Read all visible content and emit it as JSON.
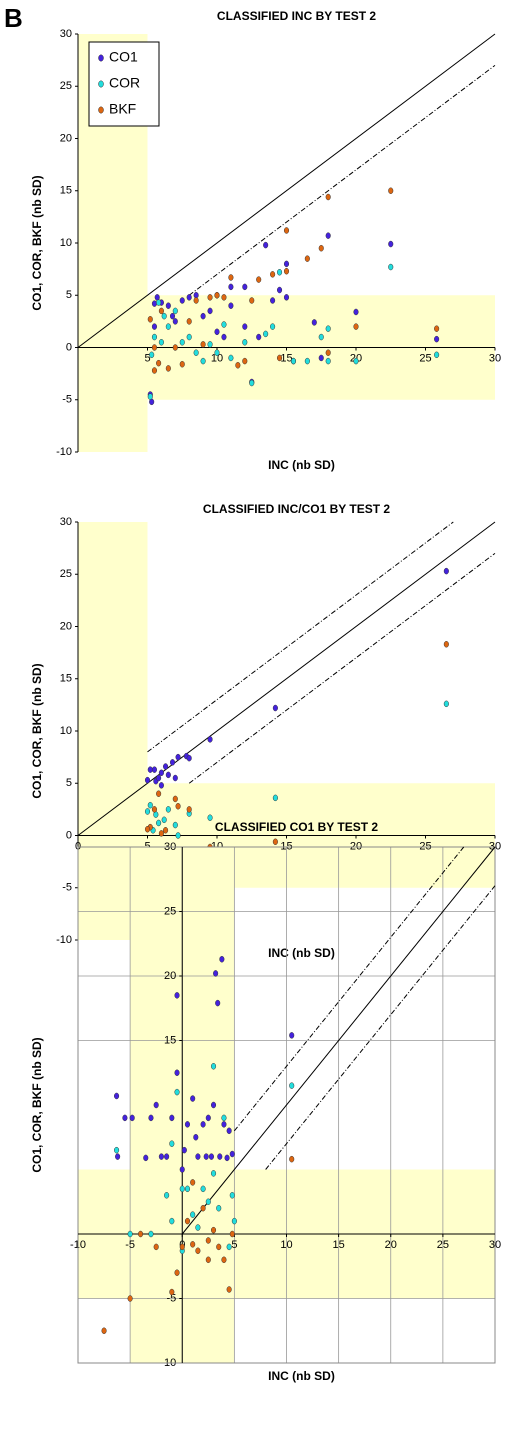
{
  "panel_label": "B",
  "chart_data": [
    {
      "type": "scatter",
      "title": "CLASSIFIED INC BY TEST 2",
      "x_label": "INC (nb SD)",
      "y_label": "CO1, COR, BKF (nb SD)",
      "xlim": [
        0,
        30
      ],
      "ylim": [
        -10,
        30
      ],
      "xticks": [
        5,
        10,
        15,
        20,
        25,
        30
      ],
      "yticks": [
        -10,
        -5,
        0,
        5,
        10,
        15,
        20,
        25,
        30
      ],
      "grid": false,
      "legend": "upper left",
      "shaded_x": [
        0,
        5
      ],
      "shaded_y": [
        -5,
        5
      ],
      "lines": [
        {
          "slope": 1,
          "intercept": 0,
          "x_start": 0,
          "style": "solid"
        },
        {
          "slope": 1,
          "intercept": -3,
          "x_start": 8,
          "style": "dashed"
        }
      ],
      "series": [
        {
          "name": "CO1",
          "color": "#4422dd",
          "x": [
            5.2,
            5.3,
            5.5,
            5.7,
            6,
            6.5,
            7,
            7.5,
            8,
            8.5,
            9,
            10,
            10,
            10.5,
            11,
            11,
            12,
            12,
            13,
            13.5,
            14,
            14.5,
            15,
            15,
            17,
            17.5,
            18,
            20,
            22.5,
            25.8,
            5.5,
            6.8,
            9.5,
            12.5,
            15.5
          ],
          "values": [
            -4.5,
            -5.2,
            4.2,
            4.8,
            4.3,
            4,
            2.5,
            4.5,
            4.8,
            5,
            3,
            5,
            1.5,
            1,
            5.8,
            4,
            5.8,
            2,
            1,
            9.8,
            4.5,
            5.5,
            8,
            4.8,
            2.4,
            -1,
            10.7,
            3.4,
            9.9,
            0.8,
            2,
            3,
            3.5,
            -3.3,
            -1.3
          ]
        },
        {
          "name": "COR",
          "color": "#22dddd",
          "x": [
            5.2,
            5.5,
            5.8,
            6.2,
            6.5,
            7,
            7.5,
            8,
            8.5,
            9,
            9.5,
            10,
            10.5,
            11,
            12,
            12.5,
            13.5,
            14,
            14.5,
            15.5,
            16.5,
            17.5,
            18,
            18,
            20,
            22.5,
            25.8,
            5.3,
            6
          ],
          "values": [
            -4.7,
            1,
            4.3,
            3,
            2,
            3.5,
            0.5,
            1,
            -0.5,
            -1.3,
            0.3,
            -0.5,
            2.2,
            -1,
            0.5,
            -3.4,
            1.3,
            2,
            7.2,
            -1.3,
            -1.3,
            1,
            1.8,
            -1.3,
            -1.3,
            7.7,
            -0.7,
            -0.7,
            0.5
          ]
        },
        {
          "name": "BKF",
          "color": "#dd6611",
          "x": [
            5.2,
            5.5,
            5.8,
            6,
            6.5,
            7,
            7.5,
            8,
            8.5,
            9,
            9.5,
            10,
            10.5,
            11,
            11.5,
            12,
            12.5,
            13,
            14,
            14.5,
            15,
            15,
            16.5,
            17.5,
            18,
            18,
            20,
            22.5,
            25.8,
            5.5
          ],
          "values": [
            2.7,
            0,
            -1.5,
            3.5,
            -2,
            0,
            -1.6,
            2.5,
            4.5,
            0.3,
            4.8,
            5,
            4.8,
            6.7,
            -1.7,
            -1.3,
            4.5,
            6.5,
            7,
            -1,
            11.2,
            7.3,
            8.5,
            9.5,
            14.4,
            -0.5,
            2,
            15,
            1.8,
            -2.2
          ]
        }
      ]
    },
    {
      "type": "scatter",
      "title": "CLASSIFIED INC/CO1 BY TEST 2",
      "x_label": "INC (nb SD)",
      "y_label": "CO1, COR, BKF (nb SD)",
      "xlim": [
        0,
        30
      ],
      "ylim": [
        -10,
        30
      ],
      "xticks": [
        0,
        5,
        10,
        15,
        20,
        25,
        30
      ],
      "yticks": [
        -10,
        -5,
        0,
        5,
        10,
        15,
        20,
        25,
        30
      ],
      "grid": false,
      "shaded_x": [
        0,
        5
      ],
      "shaded_y": [
        -5,
        5
      ],
      "lines": [
        {
          "slope": 1,
          "intercept": 0,
          "x_start": 0,
          "style": "solid"
        },
        {
          "slope": 1,
          "intercept": 3,
          "x_start": 5,
          "style": "dashed"
        },
        {
          "slope": 1,
          "intercept": -3,
          "x_start": 8,
          "style": "dashed"
        }
      ],
      "series": [
        {
          "color": "#4422dd",
          "x": [
            5.2,
            5.5,
            5.6,
            5.8,
            6,
            6.3,
            6.5,
            6.8,
            7,
            7.2,
            7.8,
            8,
            9.5,
            14.2,
            26.5,
            5,
            6
          ],
          "values": [
            6.3,
            6.3,
            5.2,
            5.5,
            6,
            6.6,
            5.8,
            7,
            5.5,
            7.5,
            7.6,
            7.4,
            9.2,
            12.2,
            25.3,
            5.3,
            4.8
          ]
        },
        {
          "color": "#22dddd",
          "x": [
            5.2,
            5.4,
            5.6,
            5.8,
            6,
            6.2,
            6.5,
            7,
            7.2,
            8,
            9.5,
            14.2,
            26.5,
            5
          ],
          "values": [
            2.9,
            0.5,
            2,
            1.2,
            -3.2,
            1.5,
            2.5,
            1,
            0,
            2.1,
            1.7,
            3.6,
            12.6,
            2.3
          ]
        },
        {
          "color": "#dd6611",
          "x": [
            5.2,
            5.5,
            5.8,
            6,
            6.3,
            6.6,
            7,
            7.2,
            8,
            9.5,
            14.2,
            26.5,
            5
          ],
          "values": [
            0.8,
            2.5,
            4,
            0.2,
            0.5,
            -3.5,
            3.5,
            2.8,
            2.5,
            -1.1,
            -0.6,
            18.3,
            0.6
          ]
        }
      ]
    },
    {
      "type": "scatter",
      "title": "CLASSIFIED CO1 BY TEST 2",
      "x_label": "INC (nb SD)",
      "y_label": "CO1, COR, BKF (nb SD)",
      "xlim": [
        -10,
        30
      ],
      "ylim": [
        -10,
        30
      ],
      "xticks": [
        -10,
        -5,
        0,
        5,
        10,
        15,
        20,
        25,
        30
      ],
      "yticks": [
        -10,
        -5,
        15,
        20,
        25,
        30
      ],
      "grid": true,
      "shaded_x": [
        -5,
        5
      ],
      "shaded_y": [
        -5,
        5
      ],
      "lines": [
        {
          "slope": 1,
          "intercept": 0,
          "x_start": 0,
          "style": "solid"
        },
        {
          "slope": 1,
          "intercept": 3,
          "x_start": 5,
          "style": "dashed"
        },
        {
          "slope": 1,
          "intercept": -3,
          "x_start": 8,
          "style": "dashed"
        }
      ],
      "series": [
        {
          "color": "#4422dd",
          "x": [
            -6.3,
            -5.5,
            -4.8,
            -3.5,
            -3,
            -2.5,
            -2,
            -1.5,
            -1,
            -0.5,
            -0.5,
            0,
            0.5,
            1,
            1.3,
            1.5,
            2,
            2.3,
            2.5,
            2.8,
            3,
            3.2,
            3.4,
            3.6,
            3.8,
            4,
            4.3,
            4.5,
            4.8,
            10.5,
            -6.2,
            0.2
          ],
          "values": [
            10.7,
            9,
            9,
            5.9,
            9,
            10,
            6,
            6,
            9,
            18.5,
            12.5,
            5,
            8.5,
            10.5,
            7.5,
            6,
            8.5,
            6,
            9,
            6,
            10,
            20.2,
            17.9,
            6,
            21.3,
            8.5,
            5.9,
            8,
            6.2,
            15.4,
            6,
            6.5
          ]
        },
        {
          "color": "#22dddd",
          "x": [
            -6.3,
            -5,
            -3,
            -1.5,
            -1,
            -0.5,
            0,
            0.5,
            1,
            1.5,
            2,
            2.5,
            3,
            3,
            3.5,
            4,
            4.5,
            4.8,
            5,
            10.5,
            -1,
            0
          ],
          "values": [
            6.5,
            0,
            0,
            3,
            1,
            11,
            -1.3,
            3.5,
            1.5,
            0.5,
            3.5,
            2.5,
            4.7,
            13,
            2,
            9,
            -1,
            3,
            1,
            11.5,
            7,
            3.5
          ]
        },
        {
          "color": "#dd6611",
          "x": [
            -7.5,
            -5,
            -4,
            -2.5,
            -0.5,
            0,
            0.5,
            1,
            1.5,
            2,
            2.5,
            3,
            3.5,
            4,
            4.5,
            10.5,
            -1,
            1,
            2.5,
            4.8
          ],
          "values": [
            -7.5,
            -5,
            0,
            -1,
            -3,
            -1,
            1,
            -0.8,
            -1.3,
            2,
            -0.5,
            0.3,
            -1,
            -2,
            -4.3,
            5.8,
            -4.5,
            4,
            -2,
            0
          ]
        }
      ]
    }
  ]
}
